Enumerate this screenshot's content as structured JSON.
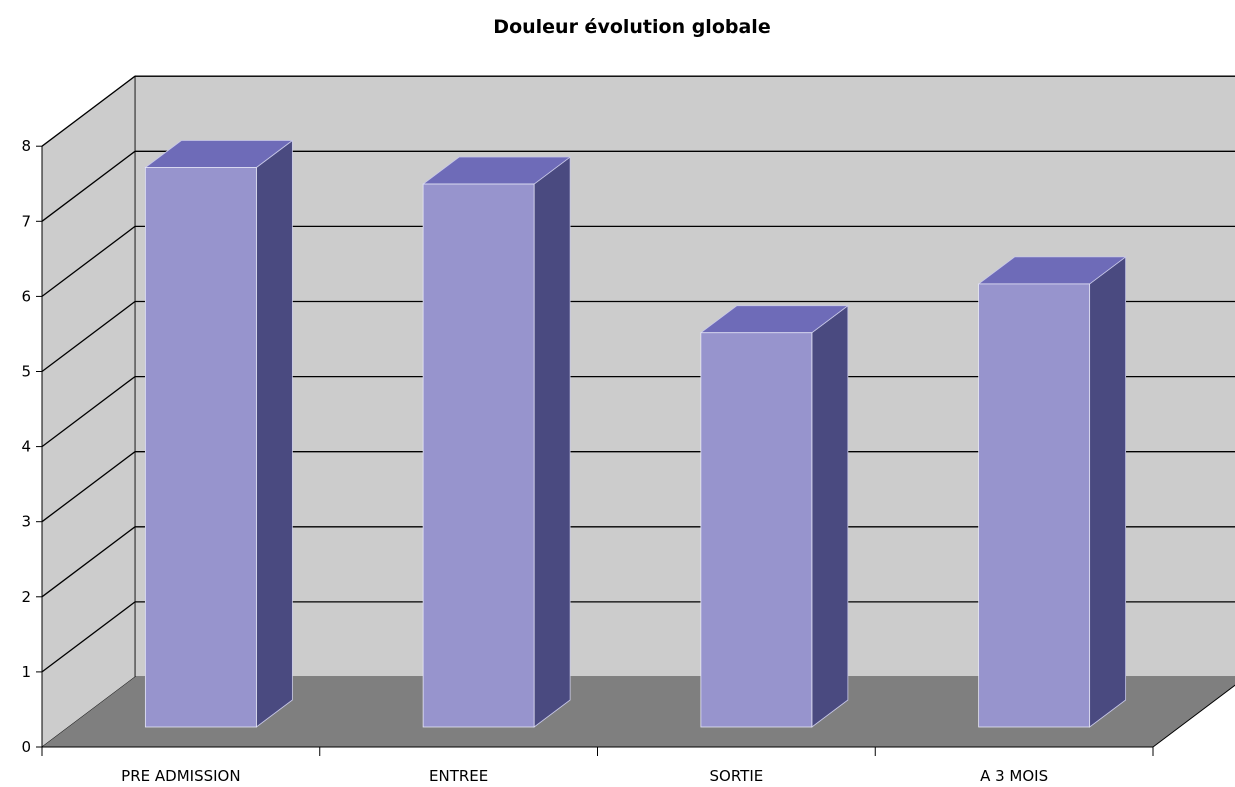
{
  "chart_data": {
    "type": "bar",
    "title": "Douleur évolution globale",
    "xlabel": "",
    "ylabel": "",
    "categories": [
      "PRE ADMISSION",
      "ENTREE",
      "SORTIE",
      "A 3 MOIS"
    ],
    "values": [
      7.45,
      7.23,
      5.25,
      5.9
    ],
    "ylim": [
      0,
      8
    ],
    "yticks": [
      "0",
      "1",
      "2",
      "3",
      "4",
      "5",
      "6",
      "7",
      "8"
    ],
    "grid": true,
    "three_d": true,
    "legend": "none",
    "colors": {
      "bar_front": "#9794cd",
      "bar_side": "#4a4a80",
      "bar_top": "#6e6bb8",
      "back_wall": "#cccccc",
      "floor": "#7f7f7f"
    }
  }
}
